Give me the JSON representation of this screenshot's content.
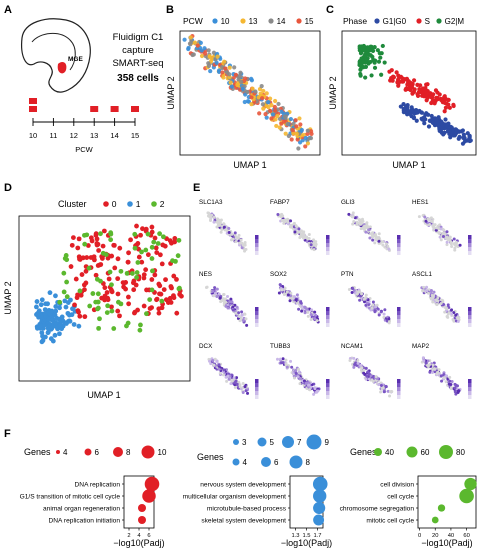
{
  "panels": {
    "A": {
      "letter": "A",
      "region": "MGE",
      "desc_lines": [
        "Fluidigm C1",
        "capture",
        "SMART-seq"
      ],
      "cells": "358 cells",
      "timeline_ticks": [
        "10",
        "11",
        "12",
        "13",
        "14",
        "15"
      ],
      "timeline_label": "PCW",
      "sampled_ticks": [
        "10",
        "13",
        "14",
        "15"
      ]
    },
    "B": {
      "letter": "B",
      "legend_title": "PCW",
      "legend": [
        {
          "label": "10",
          "color": "#3a8fd9"
        },
        {
          "label": "13",
          "color": "#f5b731"
        },
        {
          "label": "14",
          "color": "#8a8a8a"
        },
        {
          "label": "15",
          "color": "#e8563c"
        }
      ],
      "xlabel": "UMAP 1",
      "ylabel": "UMAP 2"
    },
    "C": {
      "letter": "C",
      "legend_title": "Phase",
      "legend": [
        {
          "label": "G1|G0",
          "color": "#2d4aa3"
        },
        {
          "label": "S",
          "color": "#e11f26"
        },
        {
          "label": "G2|M",
          "color": "#1f8a3c"
        }
      ],
      "xlabel": "UMAP 1",
      "ylabel": "UMAP 2"
    },
    "D": {
      "letter": "D",
      "legend_title": "Cluster",
      "legend": [
        {
          "label": "0",
          "color": "#e11f26"
        },
        {
          "label": "1",
          "color": "#3a8fd9"
        },
        {
          "label": "2",
          "color": "#5bb82e"
        }
      ],
      "xlabel": "UMAP 1",
      "ylabel": "UMAP 2"
    },
    "E": {
      "letter": "E",
      "genes": [
        "SLC1A3",
        "FABP7",
        "GLI3",
        "HES1",
        "NES",
        "SOX2",
        "PTN",
        "ASCL1",
        "DCX",
        "TUBB3",
        "NCAM1",
        "MAP2"
      ]
    },
    "F": {
      "letter": "F",
      "xlabel": "−log10(Padj)",
      "groups": [
        {
          "legend_title": "Genes",
          "legend_sizes": [
            "4",
            "6",
            "8",
            "10"
          ],
          "color": "#e11f26",
          "xticks": [
            "2",
            "4",
            "6"
          ],
          "xlim": [
            1,
            7
          ],
          "terms": [
            "DNA replication",
            "G1/S transition of mitotic cell cycle",
            "animal organ regeneration",
            "DNA replication initiation"
          ],
          "values": [
            6.6,
            6.0,
            4.6,
            4.6
          ],
          "sizes": [
            10,
            9,
            4,
            4
          ]
        },
        {
          "legend_title": "Genes",
          "legend_sizes_row1": [
            "3",
            "5",
            "7",
            "9"
          ],
          "legend_sizes_row2": [
            "4",
            "6",
            "8"
          ],
          "color": "#3a8fd9",
          "xticks": [
            "1.3",
            "1.5",
            "1.7"
          ],
          "xlim": [
            1.2,
            1.8
          ],
          "terms": [
            "nervous system development",
            "multicellular organism development",
            "microtubule-based process",
            "skeletal system development"
          ],
          "values": [
            1.75,
            1.74,
            1.73,
            1.72
          ],
          "sizes": [
            9,
            8,
            7,
            6
          ]
        },
        {
          "legend_title": "Genes",
          "legend_sizes": [
            "40",
            "60",
            "80"
          ],
          "color": "#5bb82e",
          "xticks": [
            "0",
            "20",
            "40",
            "60"
          ],
          "xlim": [
            -2,
            72
          ],
          "terms": [
            "cell division",
            "cell cycle",
            "chromosome segregation",
            "mitotic cell cycle"
          ],
          "values": [
            65,
            60,
            28,
            20
          ],
          "sizes": [
            70,
            88,
            30,
            25
          ]
        }
      ]
    }
  }
}
